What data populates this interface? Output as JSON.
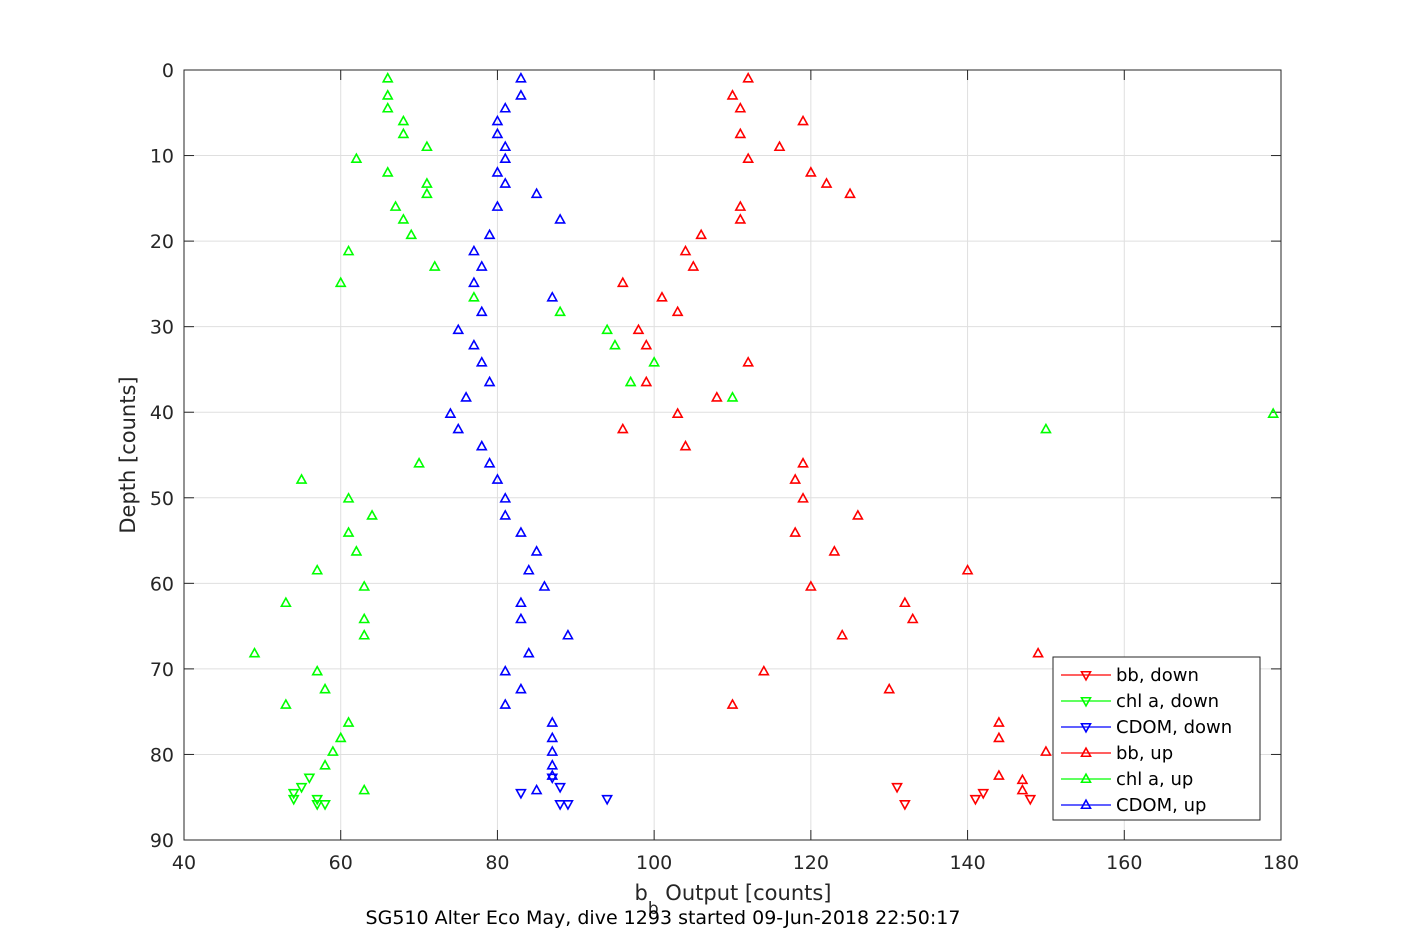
{
  "chart_data": {
    "type": "scatter",
    "title": "SG510 Alter Eco May, dive 1293 started 09-Jun-2018 22:50:17",
    "xlabel": "b_b Output [counts]",
    "xlabel_main": "b",
    "xlabel_sub": "b",
    "xlabel_rest": " Output [counts]",
    "ylabel": "Depth [counts]",
    "xlim": [
      40,
      180
    ],
    "ylim": [
      0,
      90
    ],
    "y_reversed": true,
    "grid": true,
    "legend_position": "bottom-right",
    "xticks": [
      "40",
      "60",
      "80",
      "100",
      "120",
      "140",
      "160",
      "180"
    ],
    "yticks": [
      "0",
      "10",
      "20",
      "30",
      "40",
      "50",
      "60",
      "70",
      "80",
      "90"
    ],
    "series": [
      {
        "name": "bb, down",
        "color": "#ff0000",
        "marker": "triangle-down",
        "points": [
          [
            131,
            83.8
          ],
          [
            132,
            85.8
          ],
          [
            141,
            85.2
          ],
          [
            142,
            84.5
          ],
          [
            148,
            85.2
          ]
        ]
      },
      {
        "name": "chl a, down",
        "color": "#00ff00",
        "marker": "triangle-down",
        "points": [
          [
            54,
            84.5
          ],
          [
            54,
            85.2
          ],
          [
            55,
            83.8
          ],
          [
            56,
            82.7
          ],
          [
            57,
            85.2
          ],
          [
            57,
            85.8
          ],
          [
            58,
            85.8
          ]
        ]
      },
      {
        "name": "CDOM, down",
        "color": "#0000ff",
        "marker": "triangle-down",
        "points": [
          [
            83,
            84.5
          ],
          [
            87,
            82.7
          ],
          [
            88,
            83.8
          ],
          [
            88,
            85.8
          ],
          [
            89,
            85.8
          ],
          [
            94,
            85.2
          ]
        ]
      },
      {
        "name": "bb, up",
        "color": "#ff0000",
        "marker": "triangle-up",
        "points": [
          [
            112,
            1
          ],
          [
            110,
            3
          ],
          [
            111,
            4.5
          ],
          [
            119,
            6
          ],
          [
            111,
            7.5
          ],
          [
            116,
            9
          ],
          [
            112,
            10.4
          ],
          [
            120,
            12
          ],
          [
            122,
            13.3
          ],
          [
            125,
            14.5
          ],
          [
            111,
            16
          ],
          [
            111,
            17.5
          ],
          [
            106,
            19.3
          ],
          [
            104,
            21.2
          ],
          [
            105,
            23
          ],
          [
            96,
            24.9
          ],
          [
            101,
            26.6
          ],
          [
            103,
            28.3
          ],
          [
            98,
            30.4
          ],
          [
            99,
            32.2
          ],
          [
            112,
            34.2
          ],
          [
            99,
            36.5
          ],
          [
            108,
            38.3
          ],
          [
            103,
            40.2
          ],
          [
            96,
            42
          ],
          [
            104,
            44
          ],
          [
            119,
            46
          ],
          [
            118,
            47.9
          ],
          [
            119,
            50.1
          ],
          [
            126,
            52.1
          ],
          [
            118,
            54.1
          ],
          [
            123,
            56.3
          ],
          [
            140,
            58.5
          ],
          [
            120,
            60.4
          ],
          [
            132,
            62.3
          ],
          [
            133,
            64.2
          ],
          [
            124,
            66.1
          ],
          [
            149,
            68.2
          ],
          [
            114,
            70.3
          ],
          [
            130,
            72.4
          ],
          [
            110,
            74.2
          ],
          [
            144,
            76.3
          ],
          [
            144,
            78.1
          ],
          [
            150,
            79.7
          ],
          [
            147,
            83
          ],
          [
            144,
            82.5
          ],
          [
            147,
            84.2
          ]
        ]
      },
      {
        "name": "chl a, up",
        "color": "#00ff00",
        "marker": "triangle-up",
        "points": [
          [
            66,
            1
          ],
          [
            66,
            3
          ],
          [
            66,
            4.5
          ],
          [
            68,
            6
          ],
          [
            68,
            7.5
          ],
          [
            71,
            9
          ],
          [
            62,
            10.4
          ],
          [
            66,
            12
          ],
          [
            71,
            13.3
          ],
          [
            71,
            14.5
          ],
          [
            67,
            16
          ],
          [
            68,
            17.5
          ],
          [
            69,
            19.3
          ],
          [
            61,
            21.2
          ],
          [
            72,
            23
          ],
          [
            60,
            24.9
          ],
          [
            77,
            26.6
          ],
          [
            88,
            28.3
          ],
          [
            94,
            30.4
          ],
          [
            95,
            32.2
          ],
          [
            100,
            34.2
          ],
          [
            97,
            36.5
          ],
          [
            110,
            38.3
          ],
          [
            179,
            40.2
          ],
          [
            150,
            42
          ],
          [
            70,
            46
          ],
          [
            55,
            47.9
          ],
          [
            61,
            50.1
          ],
          [
            64,
            52.1
          ],
          [
            61,
            54.1
          ],
          [
            62,
            56.3
          ],
          [
            57,
            58.5
          ],
          [
            63,
            60.4
          ],
          [
            53,
            62.3
          ],
          [
            63,
            64.2
          ],
          [
            63,
            66.1
          ],
          [
            49,
            68.2
          ],
          [
            57,
            70.3
          ],
          [
            58,
            72.4
          ],
          [
            53,
            74.2
          ],
          [
            61,
            76.3
          ],
          [
            60,
            78.1
          ],
          [
            59,
            79.7
          ],
          [
            58,
            81.3
          ],
          [
            63,
            84.2
          ]
        ]
      },
      {
        "name": "CDOM, up",
        "color": "#0000ff",
        "marker": "triangle-up",
        "points": [
          [
            83,
            1
          ],
          [
            83,
            3
          ],
          [
            81,
            4.5
          ],
          [
            80,
            6
          ],
          [
            80,
            7.5
          ],
          [
            81,
            9
          ],
          [
            81,
            10.4
          ],
          [
            80,
            12
          ],
          [
            81,
            13.3
          ],
          [
            85,
            14.5
          ],
          [
            80,
            16
          ],
          [
            88,
            17.5
          ],
          [
            79,
            19.3
          ],
          [
            77,
            21.2
          ],
          [
            78,
            23
          ],
          [
            77,
            24.9
          ],
          [
            87,
            26.6
          ],
          [
            78,
            28.3
          ],
          [
            75,
            30.4
          ],
          [
            77,
            32.2
          ],
          [
            78,
            34.2
          ],
          [
            79,
            36.5
          ],
          [
            76,
            38.3
          ],
          [
            74,
            40.2
          ],
          [
            75,
            42
          ],
          [
            78,
            44
          ],
          [
            79,
            46
          ],
          [
            80,
            47.9
          ],
          [
            81,
            50.1
          ],
          [
            81,
            52.1
          ],
          [
            83,
            54.1
          ],
          [
            85,
            56.3
          ],
          [
            84,
            58.5
          ],
          [
            86,
            60.4
          ],
          [
            83,
            62.3
          ],
          [
            83,
            64.2
          ],
          [
            89,
            66.1
          ],
          [
            84,
            68.2
          ],
          [
            81,
            70.3
          ],
          [
            83,
            72.4
          ],
          [
            81,
            74.2
          ],
          [
            87,
            76.3
          ],
          [
            87,
            78.1
          ],
          [
            87,
            79.7
          ],
          [
            87,
            81.3
          ],
          [
            87,
            82.5
          ],
          [
            85,
            84.2
          ]
        ]
      }
    ]
  }
}
